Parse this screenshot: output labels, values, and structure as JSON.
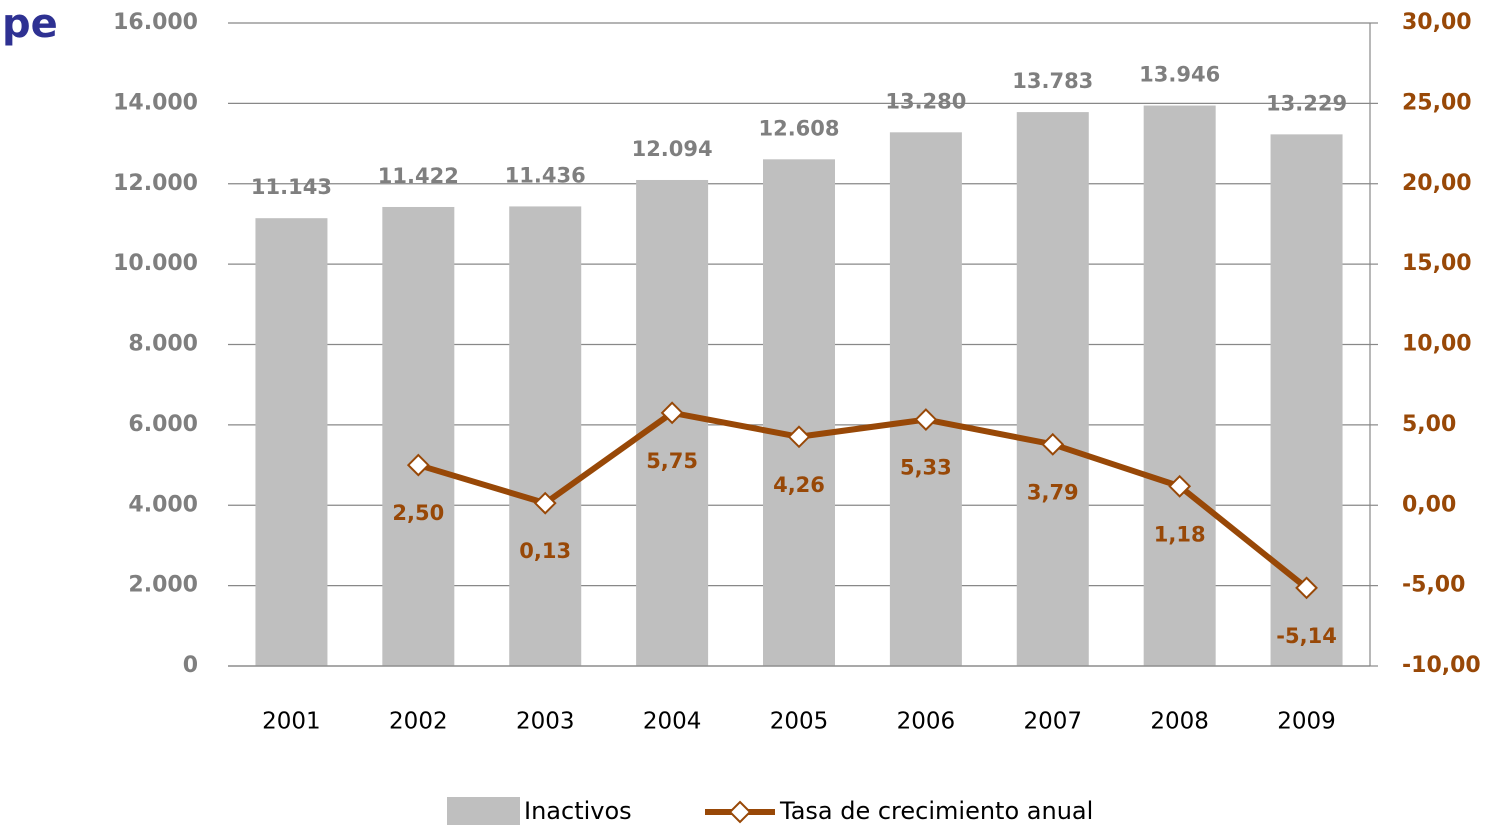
{
  "chart_data": {
    "type": "bar",
    "title": "pe",
    "categories": [
      "2001",
      "2002",
      "2003",
      "2004",
      "2005",
      "2006",
      "2007",
      "2008",
      "2009"
    ],
    "series": [
      {
        "name": "Inactivos",
        "type": "bar",
        "color": "#bfbfbf",
        "values": [
          11143,
          11422,
          11436,
          12094,
          12608,
          13280,
          13783,
          13946,
          13229
        ],
        "value_labels": [
          "11.143",
          "11.422",
          "11.436",
          "12.094",
          "12.608",
          "13.280",
          "13.783",
          "13.946",
          "13.229"
        ]
      },
      {
        "name": "Tasa de crecimiento anual",
        "type": "line",
        "axis": "y2",
        "color": "#984807",
        "values": [
          null,
          2.5,
          0.13,
          5.75,
          4.26,
          5.33,
          3.79,
          1.18,
          -5.14
        ],
        "value_labels": [
          null,
          "2,50",
          "0,13",
          "5,75",
          "4,26",
          "5,33",
          "3,79",
          "1,18",
          "-5,14"
        ]
      }
    ],
    "ylim": [
      0,
      16000
    ],
    "yticks": [
      0,
      {
        "value": 2000,
        "label": "2.000"
      },
      {
        "value": 4000,
        "label": "4.000"
      },
      {
        "value": 6000,
        "label": "6.000"
      },
      {
        "value": 8000,
        "label": "8.000"
      },
      {
        "value": 10000,
        "label": "10.000"
      },
      {
        "value": 12000,
        "label": "12.000"
      },
      {
        "value": 14000,
        "label": "14.000"
      },
      {
        "value": 16000,
        "label": "16.000"
      }
    ],
    "y2lim": [
      -10,
      30
    ],
    "y2ticks": [
      {
        "value": -10,
        "label": "-10,00"
      },
      {
        "value": -5,
        "label": "-5,00"
      },
      {
        "value": 0,
        "label": "0,00"
      },
      {
        "value": 5,
        "label": "5,00"
      },
      {
        "value": 10,
        "label": "10,00"
      },
      {
        "value": 15,
        "label": "15,00"
      },
      {
        "value": 20,
        "label": "20,00"
      },
      {
        "value": 25,
        "label": "25,00"
      },
      {
        "value": 30,
        "label": "30,00"
      }
    ],
    "grid": true,
    "legend": "bottom"
  }
}
